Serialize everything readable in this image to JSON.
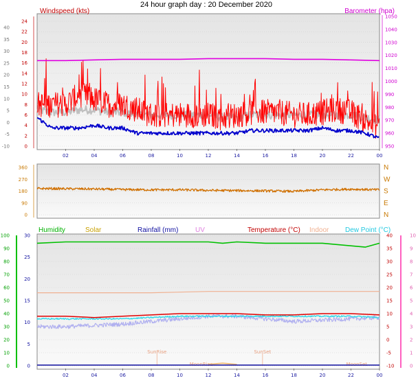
{
  "title": "24 hour graph day : 20 December 2020",
  "x_ticks": [
    "02",
    "04",
    "06",
    "08",
    "10",
    "12",
    "14",
    "16",
    "18",
    "20",
    "22",
    "00"
  ],
  "colors": {
    "wind": "#ff0000",
    "wind_avg": "#0000cc",
    "wind_gray": "#c0c0c0",
    "baro": "#e000e0",
    "dir": "#d07000",
    "humidity": "#00c000",
    "temperature": "#e00000",
    "indoor": "#f0b090",
    "dewpoint": "#30d8e8",
    "gray_band": "#b0b0f0"
  },
  "chart_data": [
    {
      "type": "line",
      "name": "wind-barometer",
      "y_left_label": "Windspeed (kts)",
      "y_right_label": "Barometer (hpa)",
      "y_left_ticks": [
        "24",
        "22",
        "20",
        "18",
        "16",
        "14",
        "12",
        "10",
        "8",
        "6",
        "4",
        "2",
        "0"
      ],
      "y_far_left_ticks": [
        "40",
        "35",
        "30",
        "25",
        "20",
        "15",
        "10",
        "5",
        "0",
        "-5",
        "-10"
      ],
      "y_right_ticks": [
        "1050",
        "1040",
        "1030",
        "1020",
        "1010",
        "1000",
        "990",
        "980",
        "970",
        "960",
        "950"
      ],
      "xlim": [
        0,
        24
      ],
      "series": [
        {
          "key": "baro",
          "unit": "hpa",
          "x": [
            0,
            2,
            4,
            6,
            8,
            10,
            12,
            13,
            14,
            16,
            18,
            20,
            22,
            24
          ],
          "y": [
            1016,
            1016,
            1016.5,
            1017,
            1017,
            1017,
            1017.5,
            1017.5,
            1017.5,
            1017.5,
            1017,
            1017,
            1016.5,
            1016
          ]
        },
        {
          "key": "gust",
          "unit": "kts",
          "x": [
            0,
            1,
            2,
            3,
            4,
            5,
            6,
            7,
            8,
            9,
            10,
            11,
            12,
            13,
            14,
            15,
            16,
            17,
            18,
            19,
            20,
            21,
            22,
            23,
            24
          ],
          "y": [
            8,
            8,
            8,
            10,
            9,
            8,
            8,
            7,
            6,
            6,
            6,
            6,
            6,
            5.5,
            6,
            6.5,
            6.5,
            6.5,
            6,
            6,
            6.5,
            7,
            6.5,
            5,
            3.5
          ]
        },
        {
          "key": "avg",
          "unit": "kts",
          "x": [
            0,
            1,
            2,
            3,
            4,
            5,
            6,
            7,
            8,
            9,
            10,
            11,
            12,
            13,
            14,
            15,
            16,
            17,
            18,
            19,
            20,
            21,
            22,
            23,
            24
          ],
          "y": [
            5.5,
            3.5,
            3.5,
            3.5,
            4,
            3.5,
            3.5,
            2.5,
            2.5,
            2.5,
            2.5,
            2.5,
            2.5,
            2.5,
            2.5,
            3,
            3,
            3,
            3,
            3,
            3.5,
            3,
            3,
            2.5,
            1.5
          ]
        },
        {
          "key": "wind_gray",
          "unit": "kts",
          "x": [
            0,
            1,
            2,
            3,
            4,
            5,
            6,
            7,
            8,
            9,
            10,
            11,
            12,
            13,
            14,
            15,
            16,
            17,
            18,
            19,
            20,
            21,
            22,
            23,
            24
          ],
          "y": [
            7,
            6.5,
            6.5,
            7,
            7,
            6.5,
            6.5,
            6,
            6,
            6,
            6,
            6,
            6,
            5.5,
            5.5,
            6,
            6,
            6,
            6,
            6,
            6,
            6,
            6,
            5.5,
            5
          ]
        }
      ]
    },
    {
      "type": "line",
      "name": "wind-direction",
      "y_left_ticks": [
        "360",
        "270",
        "180",
        "90",
        "0"
      ],
      "y_right_labels": [
        "N",
        "W",
        "S",
        "E",
        "N"
      ],
      "xlim": [
        0,
        24
      ],
      "series": [
        {
          "key": "dir",
          "unit": "deg",
          "x": [
            0,
            2,
            4,
            6,
            8,
            10,
            12,
            14,
            16,
            18,
            20,
            22,
            24
          ],
          "y": [
            200,
            198,
            196,
            192,
            190,
            190,
            186,
            184,
            182,
            178,
            190,
            195,
            190
          ]
        }
      ]
    },
    {
      "type": "line",
      "name": "temp-humidity",
      "legend": [
        "Humidity",
        "Solar",
        "Rainfall (mm)",
        "UV",
        "Temperature (°C)",
        "Indoor",
        "Dew Point (°C)"
      ],
      "y_far_left_ticks": [
        "100",
        "90",
        "80",
        "70",
        "60",
        "50",
        "40",
        "30",
        "20",
        "10",
        "0"
      ],
      "y_left_ticks": [
        "30",
        "25",
        "20",
        "15",
        "10",
        "5",
        "0"
      ],
      "y_right_ticks": [
        "40",
        "35",
        "30",
        "25",
        "20",
        "15",
        "10",
        "5",
        "0",
        "-5",
        "-10"
      ],
      "y_far_right_ticks": [
        "10",
        "9",
        "8",
        "7",
        "6",
        "5",
        "4",
        "3",
        "2",
        "1",
        "0"
      ],
      "annotations": [
        "SunRise",
        "SunSet",
        "MoonRise",
        "MoonSet"
      ],
      "xlim": [
        0,
        24
      ],
      "series": [
        {
          "key": "humidity",
          "unit": "pct",
          "x": [
            0,
            2,
            4,
            6,
            8,
            10,
            12,
            13,
            14,
            16,
            18,
            20,
            22,
            23,
            24
          ],
          "y": [
            94,
            95,
            95,
            95,
            95,
            95,
            95,
            94,
            95,
            94,
            94,
            94,
            92,
            91,
            94
          ]
        },
        {
          "key": "temperature",
          "unit": "C",
          "x": [
            0,
            2,
            4,
            6,
            8,
            10,
            12,
            14,
            16,
            18,
            20,
            22,
            24
          ],
          "y": [
            9,
            9,
            8.5,
            9,
            9.5,
            10,
            10,
            10,
            9.5,
            9.5,
            10,
            10,
            9.5
          ]
        },
        {
          "key": "indoor",
          "unit": "C",
          "x": [
            0,
            4,
            8,
            12,
            16,
            20,
            24
          ],
          "y": [
            18,
            18,
            18,
            18.5,
            18.5,
            18.5,
            18.5
          ]
        },
        {
          "key": "dewpoint",
          "unit": "C",
          "x": [
            0,
            2,
            4,
            6,
            8,
            10,
            12,
            14,
            16,
            18,
            20,
            22,
            24
          ],
          "y": [
            8,
            8,
            8,
            8,
            8.5,
            9,
            9,
            9,
            9,
            9,
            9,
            9,
            8.5
          ]
        },
        {
          "key": "gray_band",
          "unit": "C",
          "x": [
            0,
            2,
            4,
            6,
            8,
            10,
            12,
            14,
            16,
            18,
            20,
            22,
            24
          ],
          "y": [
            5,
            5,
            5.5,
            6,
            7,
            8,
            9,
            9,
            8,
            7,
            7.5,
            8,
            8.5
          ]
        },
        {
          "key": "solar",
          "unit": "C",
          "x": [
            12,
            13,
            14
          ],
          "y": [
            -9.5,
            -9,
            -9.5
          ]
        }
      ]
    }
  ]
}
